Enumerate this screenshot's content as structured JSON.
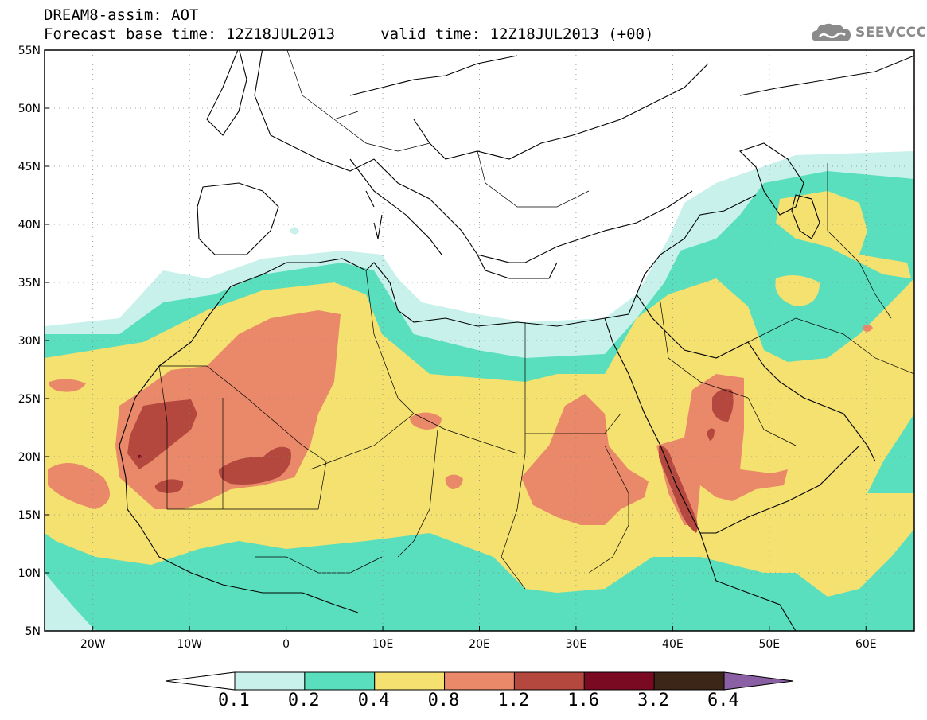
{
  "title": {
    "line1": "DREAM8-assim: AOT",
    "line2": "Forecast base time: 12Z18JUL2013     valid time: 12Z18JUL2013 (+00)"
  },
  "logo": {
    "icon": "cloud-icon",
    "text": "SEEVCCC"
  },
  "map": {
    "lon_range": [
      -25,
      65
    ],
    "lat_range": [
      5,
      55
    ],
    "grid": true,
    "lat_labels": [
      "55N",
      "50N",
      "45N",
      "40N",
      "35N",
      "30N",
      "25N",
      "20N",
      "15N",
      "10N",
      "5N"
    ],
    "lon_labels": [
      "20W",
      "10W",
      "0",
      "10E",
      "20E",
      "30E",
      "40E",
      "50E",
      "60E"
    ]
  },
  "colorbar": {
    "labels": [
      "0.1",
      "0.2",
      "0.4",
      "0.8",
      "1.2",
      "1.6",
      "3.2",
      "6.4"
    ],
    "colors": [
      "#ffffff",
      "#c7f1ea",
      "#59dfbd",
      "#f5e16f",
      "#e9896a",
      "#b4483f",
      "#7a0a22",
      "#3b2617",
      "#8a5fa3"
    ]
  }
}
